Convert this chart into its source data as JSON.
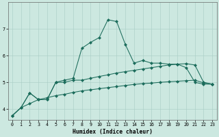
{
  "xlabel": "Humidex (Indice chaleur)",
  "bg_color": "#cce8e0",
  "line_color": "#1a6b5a",
  "grid_color": "#a8ccc4",
  "x_min": -0.5,
  "x_max": 23.5,
  "y_min": 3.6,
  "y_max": 8.0,
  "yticks": [
    4,
    5,
    6,
    7
  ],
  "xticks": [
    0,
    1,
    2,
    3,
    4,
    5,
    6,
    7,
    8,
    9,
    10,
    11,
    12,
    13,
    14,
    15,
    16,
    17,
    18,
    19,
    20,
    21,
    22,
    23
  ],
  "series_bottom_x": [
    0,
    1,
    2,
    3,
    4,
    5,
    6,
    7,
    8,
    9,
    10,
    11,
    12,
    13,
    14,
    15,
    16,
    17,
    18,
    19,
    20,
    21,
    22,
    23
  ],
  "series_bottom_y": [
    3.75,
    4.05,
    4.2,
    4.35,
    4.42,
    4.5,
    4.55,
    4.62,
    4.68,
    4.72,
    4.76,
    4.8,
    4.84,
    4.88,
    4.92,
    4.95,
    4.97,
    5.0,
    5.02,
    5.04,
    5.06,
    5.08,
    4.98,
    4.93
  ],
  "series_mid_x": [
    0,
    1,
    2,
    3,
    4,
    5,
    6,
    7,
    8,
    9,
    10,
    11,
    12,
    13,
    14,
    15,
    16,
    17,
    18,
    19,
    20,
    21,
    22,
    23
  ],
  "series_mid_y": [
    3.75,
    4.05,
    4.6,
    4.35,
    4.35,
    5.0,
    5.0,
    5.08,
    5.08,
    5.15,
    5.22,
    5.28,
    5.35,
    5.4,
    5.45,
    5.5,
    5.55,
    5.6,
    5.65,
    5.68,
    5.7,
    5.65,
    5.0,
    4.93
  ],
  "series_top_x": [
    0,
    1,
    2,
    3,
    4,
    5,
    6,
    7,
    8,
    9,
    10,
    11,
    12,
    13,
    14,
    15,
    16,
    17,
    18,
    19,
    20,
    21,
    22,
    23
  ],
  "series_top_y": [
    3.75,
    4.05,
    4.6,
    4.35,
    4.35,
    5.0,
    5.08,
    5.15,
    6.28,
    6.5,
    6.68,
    7.35,
    7.28,
    6.42,
    5.72,
    5.82,
    5.72,
    5.72,
    5.68,
    5.68,
    5.55,
    5.0,
    4.93,
    4.93
  ]
}
